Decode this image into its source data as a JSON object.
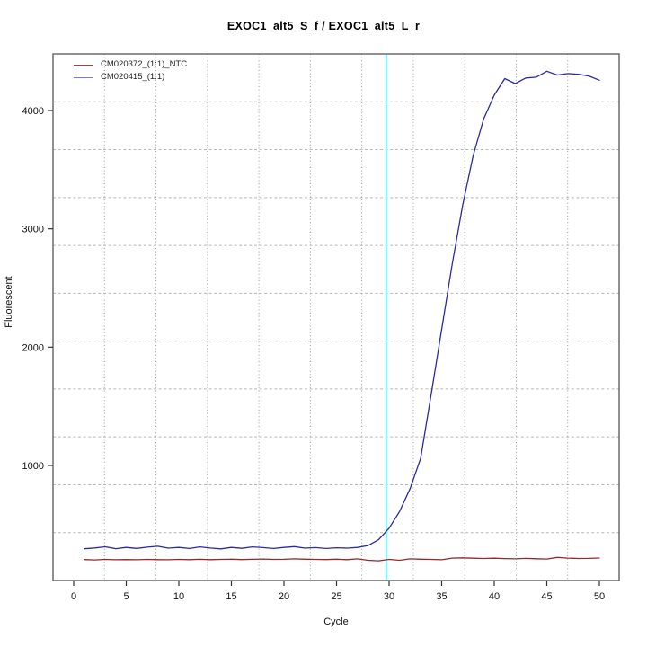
{
  "chart_data": {
    "type": "line",
    "title": "EXOC1_alt5_S_f / EXOC1_alt5_L_r",
    "xlabel": "Cycle",
    "ylabel": "Fluorescent",
    "x_ticks": [
      0,
      5,
      10,
      15,
      20,
      25,
      30,
      35,
      40,
      45,
      50
    ],
    "y_ticks": [
      1000,
      2000,
      3000,
      4000
    ],
    "xlim": [
      -2,
      52
    ],
    "ylim": [
      30,
      4480
    ],
    "grid": {
      "style": "dotted",
      "divisions": 11,
      "color_h": "#b8b8b8",
      "color_v": "#9a9a9a"
    },
    "legend_position": "top-left",
    "threshold_line": {
      "x": 29.75,
      "color": "#70ffff"
    },
    "axis_color": "#606060",
    "tick_color": "#333333",
    "x": [
      1,
      2,
      3,
      4,
      5,
      6,
      7,
      8,
      9,
      10,
      11,
      12,
      13,
      14,
      15,
      16,
      17,
      18,
      19,
      20,
      21,
      22,
      23,
      24,
      25,
      26,
      27,
      28,
      29,
      30,
      31,
      32,
      33,
      34,
      35,
      36,
      37,
      38,
      39,
      40,
      41,
      42,
      43,
      44,
      45,
      46,
      47,
      48,
      49,
      50
    ],
    "series": [
      {
        "name": "CM020372_(1:1)_NTC",
        "color": "#8f2b2b",
        "legend_color": "#a64040",
        "values": [
          205,
          202,
          206,
          203,
          205,
          203,
          206,
          204,
          203,
          206,
          204,
          207,
          204,
          206,
          208,
          205,
          207,
          209,
          206,
          207,
          211,
          208,
          206,
          205,
          208,
          204,
          211,
          199,
          194,
          206,
          199,
          211,
          208,
          206,
          203,
          217,
          219,
          216,
          214,
          216,
          213,
          211,
          215,
          212,
          209,
          223,
          217,
          214,
          215,
          218
        ]
      },
      {
        "name": "CM020415_(1:1)",
        "color": "#2b2ba0",
        "legend_color": "#7a7acc",
        "values": [
          296,
          303,
          313,
          297,
          307,
          299,
          310,
          317,
          301,
          307,
          298,
          312,
          302,
          295,
          307,
          300,
          312,
          306,
          298,
          307,
          314,
          301,
          306,
          298,
          304,
          301,
          307,
          323,
          373,
          470,
          612,
          805,
          1060,
          1600,
          2150,
          2700,
          3200,
          3620,
          3930,
          4130,
          4270,
          4228,
          4275,
          4282,
          4332,
          4300,
          4312,
          4306,
          4292,
          4256
        ]
      }
    ]
  }
}
